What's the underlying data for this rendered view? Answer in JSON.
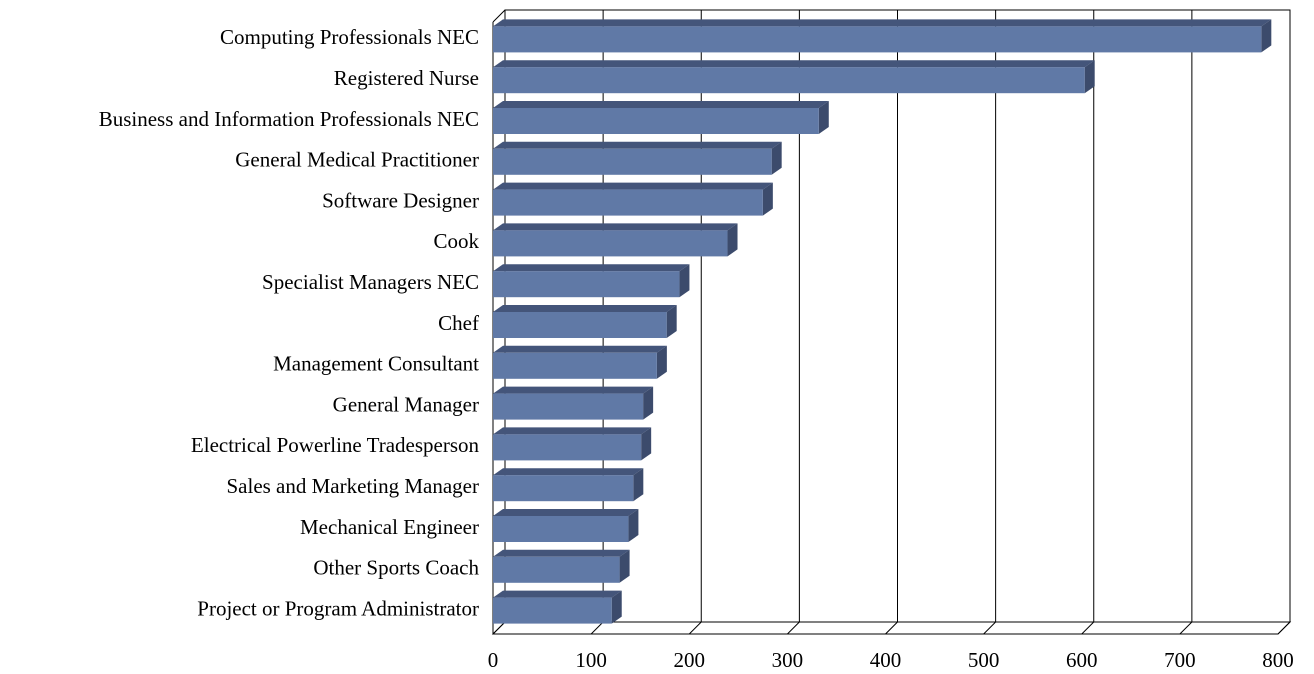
{
  "chart_data": {
    "type": "bar",
    "orientation": "horizontal",
    "categories": [
      "Computing Professionals NEC",
      "Registered Nurse",
      "Business and Information Professionals NEC",
      "General Medical Practitioner",
      "Software Designer",
      "Cook",
      "Specialist Managers NEC",
      "Chef",
      "Management Consultant",
      "General Manager",
      "Electrical Powerline Tradesperson",
      "Sales and Marketing Manager",
      "Mechanical Engineer",
      "Other Sports Coach",
      "Project or Program Administrator"
    ],
    "values": [
      783,
      603,
      332,
      284,
      275,
      239,
      190,
      177,
      167,
      153,
      151,
      143,
      138,
      129,
      121
    ],
    "color": "#6079a6",
    "xlim": [
      0,
      800
    ],
    "xticks": [
      0,
      100,
      200,
      300,
      400,
      500,
      600,
      700,
      800
    ],
    "grid": true
  }
}
